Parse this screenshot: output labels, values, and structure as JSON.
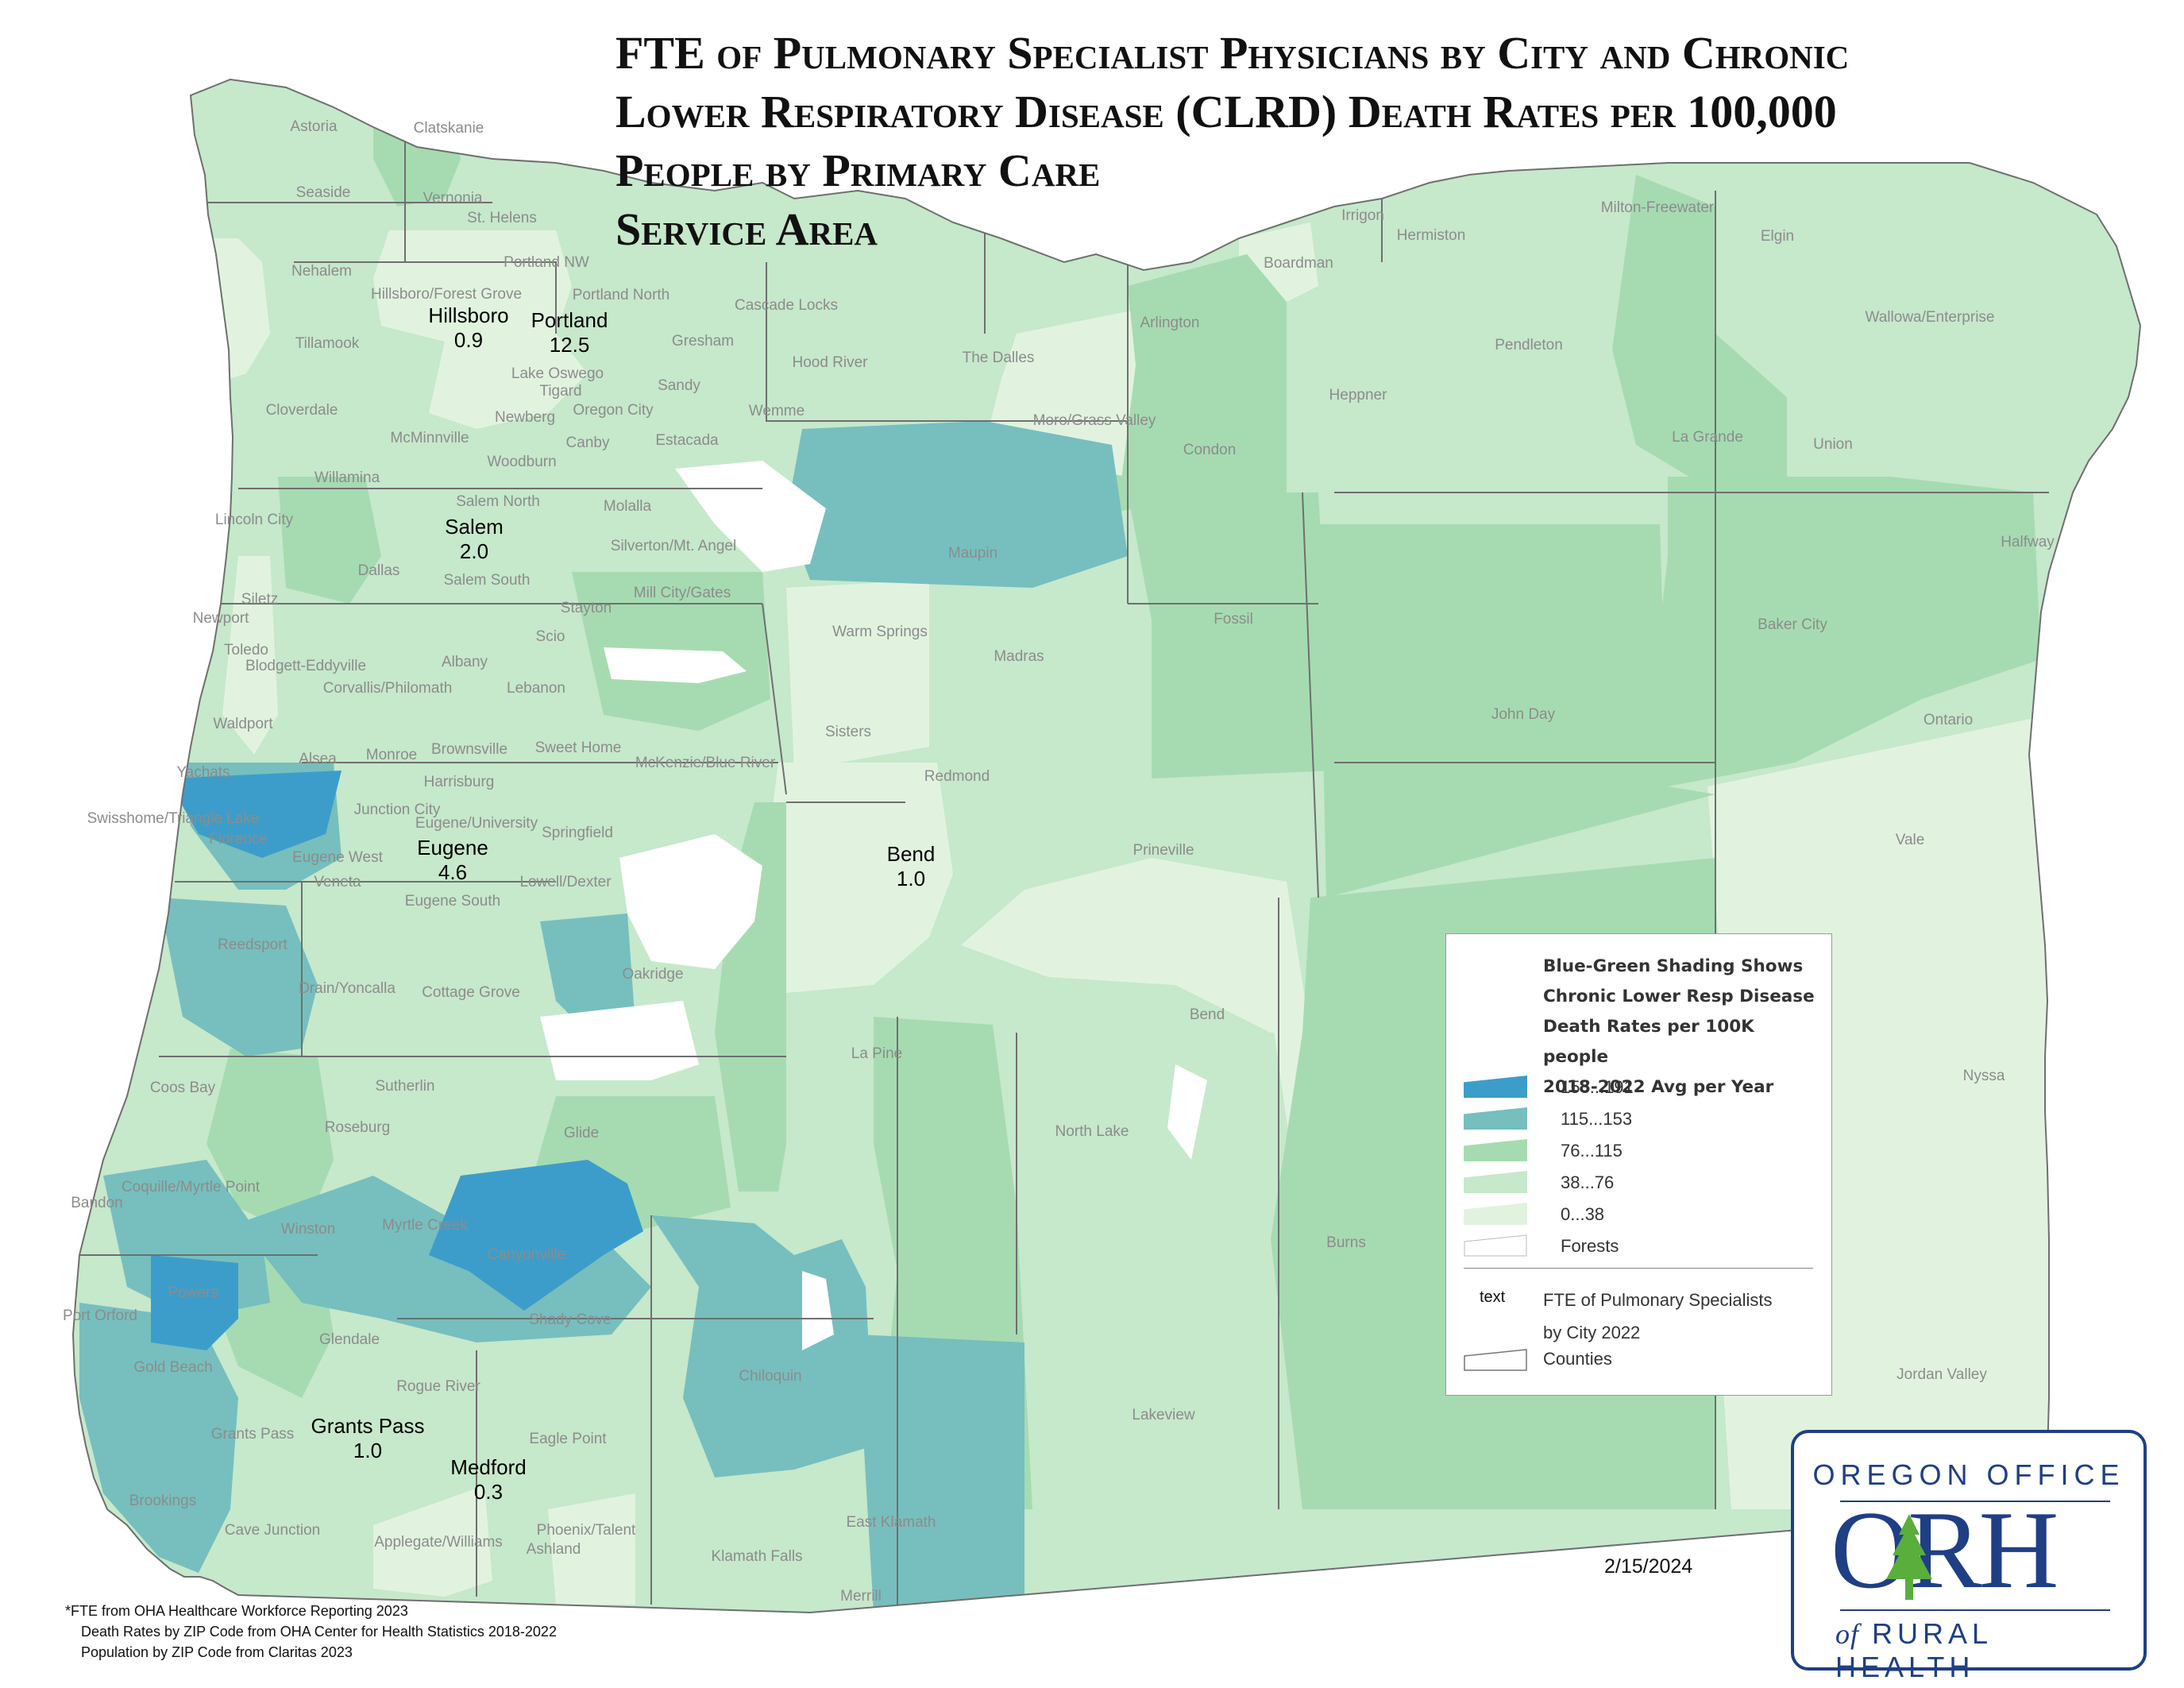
{
  "title_lines": [
    "FTE of Pulmonary Specialist Physicians by City and Chronic",
    "Lower Respiratory Disease (CLRD) Death Rates per 100,000",
    "People by Primary Care",
    "Service Area"
  ],
  "colors": {
    "class_153_191": "#3d9dca",
    "class_115_153": "#76bfbe",
    "class_76_115": "#a6dbb1",
    "class_38_76": "#c6e8cb",
    "class_0_38": "#e1f3df",
    "forests": "#ffffff",
    "county_border": "#6f6f6f",
    "logo_blue": "#1f3f85",
    "logo_tree": "#5aae3c"
  },
  "legend": {
    "title_lines": [
      "Blue-Green Shading Shows",
      "Chronic Lower Resp Disease",
      "Death Rates per 100K people",
      "2018-2022 Avg per Year"
    ],
    "classes": [
      {
        "label": "153...191",
        "color_key": "class_153_191"
      },
      {
        "label": "115...153",
        "color_key": "class_115_153"
      },
      {
        "label": "76...115",
        "color_key": "class_76_115"
      },
      {
        "label": "38...76",
        "color_key": "class_38_76"
      },
      {
        "label": "0...38",
        "color_key": "class_0_38"
      },
      {
        "label": "Forests",
        "color_key": "forests"
      }
    ],
    "text_key": "text",
    "fte_label_lines": [
      "FTE of Pulmonary Specialists",
      "by City 2022"
    ],
    "counties_label": "Counties"
  },
  "cities": [
    {
      "name": "Hillsboro",
      "fte": "0.9"
    },
    {
      "name": "Portland",
      "fte": "12.5"
    },
    {
      "name": "Salem",
      "fte": "2.0"
    },
    {
      "name": "Eugene",
      "fte": "4.6"
    },
    {
      "name": "Bend",
      "fte": "1.0"
    },
    {
      "name": "Grants Pass",
      "fte": "1.0"
    },
    {
      "name": "Medford",
      "fte": "0.3"
    }
  ],
  "service_area_labels": [
    "Astoria",
    "Clatskanie",
    "Seaside",
    "Vernonia",
    "St. Helens",
    "Nehalem",
    "Portland NW",
    "Hillsboro/Forest Grove",
    "Portland North",
    "Cascade Locks",
    "Tillamook",
    "Gresham",
    "Hood River",
    "The Dalles",
    "Arlington",
    "Irrigon",
    "Hermiston",
    "Boardman",
    "Milton-Freewater",
    "Elgin",
    "Wallowa/Enterprise",
    "Pendleton",
    "Lake Oswego",
    "Tigard",
    "Sandy",
    "Wemme",
    "Cloverdale",
    "McMinnville",
    "Newberg",
    "Oregon City",
    "Canby",
    "Estacada",
    "Moro/Grass Valley",
    "Heppner",
    "La Grande",
    "Union",
    "Condon",
    "Willamina",
    "Woodburn",
    "Molalla",
    "Salem North",
    "Lincoln City",
    "Silverton/Mt. Angel",
    "Maupin",
    "Halfway",
    "Dallas",
    "Salem South",
    "Mill City/Gates",
    "Fossil",
    "Baker City",
    "Siletz",
    "Newport",
    "Stayton",
    "Warm Springs",
    "Toledo",
    "Blodgett-Eddyville",
    "Albany",
    "Scio",
    "Madras",
    "Corvallis/Philomath",
    "Lebanon",
    "John Day",
    "Waldport",
    "Ontario",
    "Alsea",
    "Monroe",
    "Brownsville",
    "Sweet Home",
    "Sisters",
    "Yachats",
    "McKenzie/Blue River",
    "Harrisburg",
    "Redmond",
    "Swisshome/Triangle Lake",
    "Junction City",
    "Eugene/University",
    "Vale",
    "Florence",
    "Springfield",
    "Eugene West",
    "Prineville",
    "Veneta",
    "Lowell/Dexter",
    "Eugene South",
    "Reedsport",
    "Oakridge",
    "Drain/Yoncalla",
    "Cottage Grove",
    "Bend",
    "La Pine",
    "Nyssa",
    "Coos Bay",
    "Sutherlin",
    "Roseburg",
    "North Lake",
    "Glide",
    "Coquille/Myrtle Point",
    "Bandon",
    "Winston",
    "Myrtle Creek",
    "Canyonville",
    "Burns",
    "Powers",
    "Port Orford",
    "Glendale",
    "Shady Cove",
    "Gold Beach",
    "Rogue River",
    "Chiloquin",
    "Jordan Valley",
    "Lakeview",
    "Grants Pass",
    "Eagle Point",
    "Brookings",
    "Cave Junction",
    "Phoenix/Talent",
    "Applegate/Williams",
    "Ashland",
    "Klamath Falls",
    "East Klamath",
    "Merrill"
  ],
  "date": "2/15/2024",
  "logo": {
    "top": "OREGON OFFICE",
    "main": "ORH",
    "of": "of",
    "bottom": "RURAL HEALTH"
  },
  "notes": [
    "*FTE from OHA Healthcare Workforce Reporting 2023",
    "Death Rates by ZIP Code from OHA Center for Health Statistics 2018-2022",
    "Population by ZIP Code from Claritas 2023"
  ]
}
